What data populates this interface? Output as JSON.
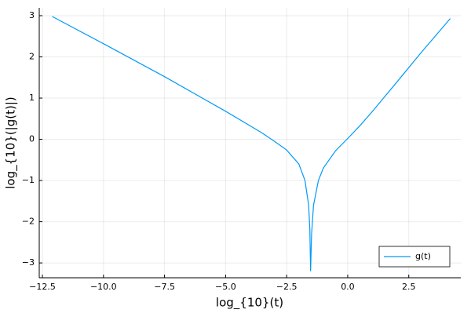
{
  "chart_data": {
    "type": "line",
    "xlabel": "log_{10}(t)",
    "ylabel": "log_{10}(|g(t)|)",
    "x": [
      -12.1,
      -10,
      -7.5,
      -5,
      -4,
      -3.5,
      -3,
      -2.5,
      -2.0,
      -1.75,
      -1.6,
      -1.55,
      -1.52,
      -1.48,
      -1.4,
      -1.2,
      -1.0,
      -0.5,
      0,
      0.5,
      1,
      2,
      3,
      4.2
    ],
    "series": [
      {
        "name": "g(t)",
        "color": "#009af9",
        "values": [
          2.98,
          2.32,
          1.52,
          0.68,
          0.33,
          0.15,
          -0.05,
          -0.26,
          -0.6,
          -1.0,
          -1.6,
          -2.2,
          -3.2,
          -2.3,
          -1.6,
          -1.0,
          -0.7,
          -0.28,
          0.02,
          0.33,
          0.67,
          1.38,
          2.1,
          2.93
        ]
      }
    ],
    "xlim": [
      -12.63,
      4.63
    ],
    "ylim": [
      -3.36,
      3.19
    ],
    "xticks": [
      {
        "value": -12.5,
        "label": "−12.5"
      },
      {
        "value": -10,
        "label": "−10.0"
      },
      {
        "value": -7.5,
        "label": "−7.5"
      },
      {
        "value": -5,
        "label": "−5.0"
      },
      {
        "value": -2.5,
        "label": "−2.5"
      },
      {
        "value": 0,
        "label": "0.0"
      },
      2.5
    ],
    "yticks": [
      {
        "value": -3,
        "label": "−3"
      },
      {
        "value": -2,
        "label": "−2"
      },
      {
        "value": -1,
        "label": "−1"
      },
      0,
      1,
      2,
      3
    ],
    "grid": true,
    "legend": "bottom-right"
  }
}
